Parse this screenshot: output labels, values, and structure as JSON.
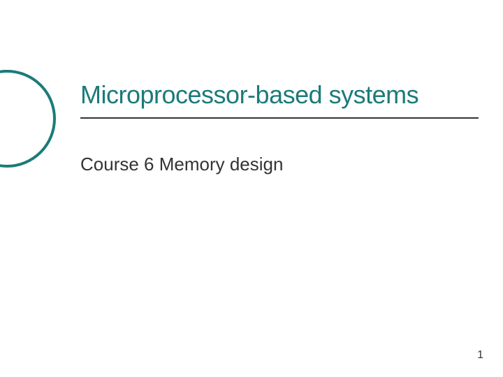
{
  "slide": {
    "title": "Microprocessor-based systems",
    "subtitle": "Course 6 Memory design",
    "pageNumber": "1"
  },
  "styling": {
    "titleColor": "#1b7b7a",
    "titleFontSize": 36,
    "subtitleColor": "#333333",
    "subtitleFontSize": 26,
    "circleColor": "#1b7b7a",
    "circleBorderWidth": 4,
    "ruleColor": "#333333",
    "ruleTop": 168,
    "pageNumberColor": "#333333",
    "pageNumberFontSize": 16,
    "backgroundColor": "#ffffff"
  }
}
